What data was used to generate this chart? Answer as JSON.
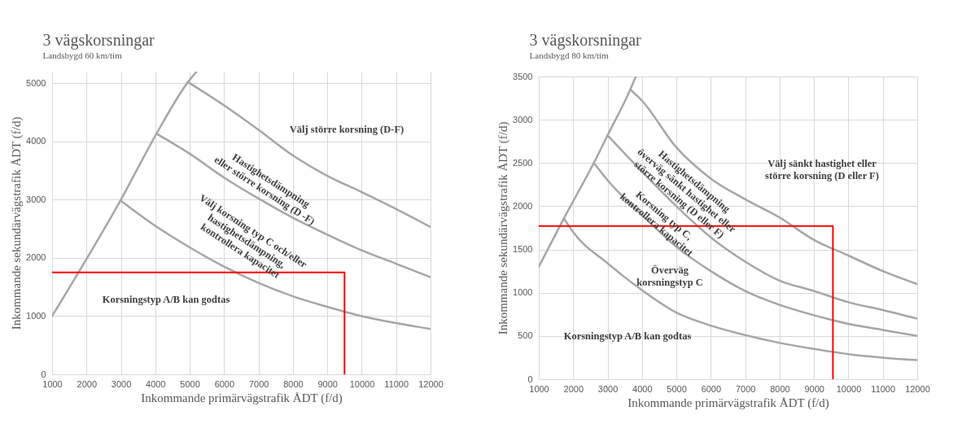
{
  "chart_data": [
    {
      "type": "line",
      "title": "3 vägskorsningar",
      "subtitle": "Landsbygd 60 km/tim",
      "xlabel": "Inkommande primärvägstrafik ÅDT (f/d)",
      "ylabel": "Inkommande sekundärvägstrafik ÅDT (f/d)",
      "xlim": [
        1000,
        12000
      ],
      "xticks": [
        1000,
        2000,
        3000,
        4000,
        5000,
        6000,
        7000,
        8000,
        9000,
        10000,
        11000,
        12000
      ],
      "ylim": [
        0,
        5200
      ],
      "yticks": [
        0,
        1000,
        2000,
        3000,
        4000,
        5000
      ],
      "grid": true,
      "series": [
        {
          "color": "#a6a6a6",
          "x": [
            1000,
            3000,
            4050,
            4950,
            5200
          ],
          "values": [
            1000,
            3000,
            4150,
            5020,
            5200
          ]
        },
        {
          "color": "#a6a6a6",
          "x": [
            3000,
            4000,
            5000,
            6000,
            7000,
            8000,
            9000,
            10000,
            11000,
            12000
          ],
          "values": [
            2980,
            2550,
            2180,
            1850,
            1570,
            1340,
            1160,
            1000,
            880,
            780
          ]
        },
        {
          "color": "#a6a6a6",
          "x": [
            4050,
            5000,
            6000,
            7000,
            8000,
            9000,
            10000,
            11000,
            12000
          ],
          "values": [
            4130,
            3790,
            3380,
            3020,
            2690,
            2400,
            2130,
            1900,
            1670
          ]
        },
        {
          "color": "#a6a6a6",
          "x": [
            4950,
            6000,
            7000,
            8000,
            9000,
            10000,
            11000,
            12000
          ],
          "values": [
            5020,
            4620,
            4200,
            3760,
            3410,
            3130,
            2840,
            2530
          ]
        },
        {
          "color": "#ff0000",
          "x": [
            1000,
            9500,
            9500
          ],
          "values": [
            1750,
            1750,
            0
          ]
        }
      ],
      "annotations": [
        "Välj större korsning (D-F)",
        "Hastighetsdämpning\neller  större korsning (D -F)",
        "Välj korsning typ C och/eller\nhastighetsdämpning,\nkontrollera kapacitet",
        "Korsningstyp A/B kan godtas"
      ]
    },
    {
      "type": "line",
      "title": "3 vägskorsningar",
      "subtitle": "Landsbygd 80 km/tim",
      "xlabel": "Inkommande primärvägstrafik ÅDT (f/d)",
      "ylabel": "Inkommande sekundärvägstrafik ÅDT (f/d)",
      "xlim": [
        1000,
        12000
      ],
      "xticks": [
        1000,
        2000,
        3000,
        4000,
        5000,
        6000,
        7000,
        8000,
        9000,
        10000,
        11000,
        12000
      ],
      "ylim": [
        0,
        3500
      ],
      "yticks": [
        0,
        500,
        1000,
        1500,
        2000,
        2500,
        3000,
        3500
      ],
      "grid": true,
      "series": [
        {
          "color": "#a6a6a6",
          "x": [
            1000,
            1730,
            2600,
            3000,
            3660,
            3820
          ],
          "values": [
            1300,
            1860,
            2500,
            2820,
            3350,
            3500
          ]
        },
        {
          "color": "#a6a6a6",
          "x": [
            1730,
            2000,
            3000,
            4000,
            5000,
            6000,
            7000,
            8000,
            9000,
            10000,
            11000,
            12000
          ],
          "values": [
            1860,
            1700,
            1340,
            1030,
            770,
            620,
            510,
            420,
            350,
            290,
            250,
            220
          ]
        },
        {
          "color": "#a6a6a6",
          "x": [
            2600,
            3000,
            4000,
            5000,
            6000,
            7000,
            8000,
            9000,
            10000,
            11000,
            12000
          ],
          "values": [
            2500,
            2300,
            1900,
            1530,
            1250,
            1020,
            860,
            740,
            640,
            570,
            500
          ]
        },
        {
          "color": "#a6a6a6",
          "x": [
            3000,
            4000,
            5000,
            6000,
            7000,
            8000,
            9000,
            10000,
            11000,
            12000
          ],
          "values": [
            2820,
            2400,
            2000,
            1640,
            1360,
            1140,
            1020,
            890,
            800,
            700
          ]
        },
        {
          "color": "#a6a6a6",
          "x": [
            3660,
            4000,
            5000,
            6000,
            7000,
            8000,
            9000,
            10000,
            11000,
            12000
          ],
          "values": [
            3350,
            3220,
            2680,
            2320,
            2080,
            1870,
            1610,
            1430,
            1250,
            1100
          ]
        },
        {
          "color": "#ff0000",
          "x": [
            1000,
            9550,
            9550
          ],
          "values": [
            1770,
            1770,
            0
          ]
        }
      ],
      "annotations": [
        "Välj sänkt hastighet eller\nstörre korsning (D eller F)",
        "Hastighetsdämpning\növerväg  sänkt hastighet  eller\nstörre  korsning (D eller F)",
        "Korsning typ C,\nkontrollera kapacitet",
        "Överväg\nkorsningstyp C",
        "Korsningstyp A/B kan godtas"
      ]
    }
  ]
}
